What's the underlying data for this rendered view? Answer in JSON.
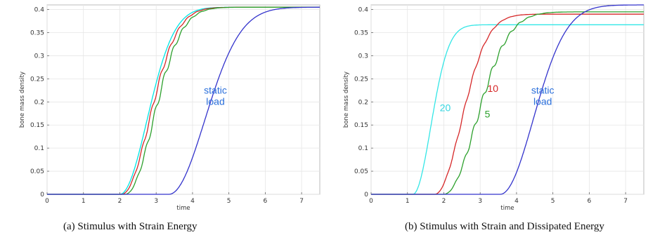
{
  "chart_data": [
    {
      "type": "line",
      "caption": "(a) Stimulus with Strain Energy",
      "xlabel": "time",
      "ylabel": "bone mass density",
      "xlim": [
        0,
        7.5
      ],
      "ylim": [
        0,
        0.41
      ],
      "xticks": [
        0,
        1,
        2,
        3,
        4,
        5,
        6,
        7
      ],
      "yticks": [
        0,
        0.05,
        0.1,
        0.15,
        0.2,
        0.25,
        0.3,
        0.35,
        0.4
      ],
      "ytick_labels": [
        "0",
        "0.05",
        "0.1",
        "0.15",
        "0.2",
        "0.25",
        "0.3",
        "0.35",
        "0.4"
      ],
      "grid": true,
      "series": [
        {
          "color": "#00e5e5",
          "t0": 2.0,
          "k": 0.95,
          "top": 0.405,
          "wiggle": 0.0
        },
        {
          "color": "#d62728",
          "t0": 2.05,
          "k": 0.93,
          "top": 0.405,
          "wiggle": 0.006
        },
        {
          "color": "#2ca02c",
          "t0": 2.15,
          "k": 0.92,
          "top": 0.405,
          "wiggle": 0.008
        },
        {
          "color": "#3333cc",
          "t0": 3.35,
          "k": 0.72,
          "top": 0.405,
          "wiggle": 0.0
        }
      ],
      "annotations": [
        {
          "lines": [
            "static",
            "load"
          ],
          "x": 4.63,
          "y": 0.218,
          "color": "#2a6fdb"
        }
      ]
    },
    {
      "type": "line",
      "caption": "(b) Stimulus with Strain and Dissipated Energy",
      "xlabel": "time",
      "ylabel": "bone mass density",
      "xlim": [
        0,
        7.5
      ],
      "ylim": [
        0,
        0.41
      ],
      "xticks": [
        0,
        1,
        2,
        3,
        4,
        5,
        6,
        7
      ],
      "yticks": [
        0,
        0.05,
        0.1,
        0.15,
        0.2,
        0.25,
        0.3,
        0.35,
        0.4
      ],
      "ytick_labels": [
        "0",
        "0.05",
        "0.1",
        "0.15",
        "0.2",
        "0.25",
        "0.3",
        "0.35",
        "0.4"
      ],
      "grid": true,
      "series": [
        {
          "name": "20",
          "color": "#33e6e6",
          "t0": 1.15,
          "k": 1.45,
          "top": 0.367,
          "wiggle": 0.0
        },
        {
          "name": "10",
          "color": "#d62728",
          "t0": 1.75,
          "k": 0.98,
          "top": 0.39,
          "wiggle": 0.004
        },
        {
          "name": "5",
          "color": "#2ca02c",
          "t0": 2.0,
          "k": 0.8,
          "top": 0.395,
          "wiggle": 0.008
        },
        {
          "color": "#3333cc",
          "t0": 3.55,
          "k": 0.78,
          "top": 0.41,
          "wiggle": 0.0
        }
      ],
      "annotations": [
        {
          "lines": [
            "20"
          ],
          "x": 2.04,
          "y": 0.18,
          "color": "#33d6e0"
        },
        {
          "lines": [
            "10"
          ],
          "x": 3.35,
          "y": 0.222,
          "color": "#d62728"
        },
        {
          "lines": [
            "5"
          ],
          "x": 3.2,
          "y": 0.166,
          "color": "#2ca02c"
        },
        {
          "lines": [
            "static",
            "load"
          ],
          "x": 4.72,
          "y": 0.218,
          "color": "#2a6fdb"
        }
      ]
    }
  ]
}
